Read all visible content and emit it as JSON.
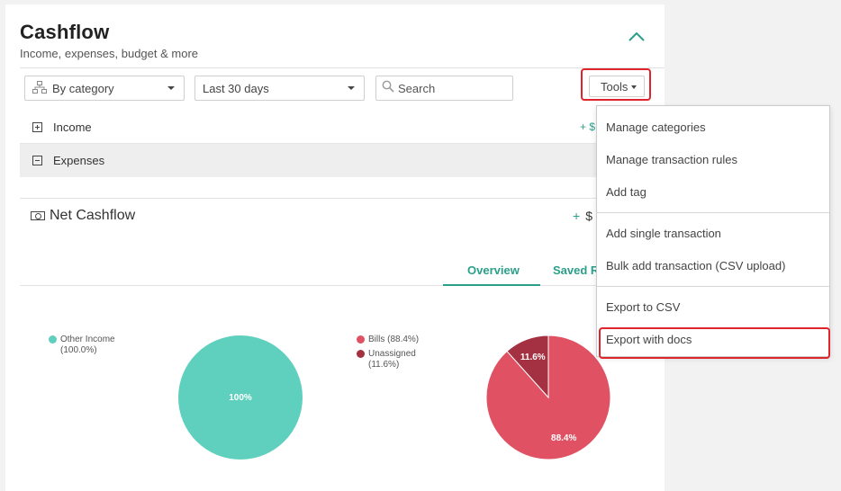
{
  "header": {
    "title": "Cashflow",
    "subtitle": "Income, expenses, budget & more"
  },
  "filters": {
    "group_by": "By category",
    "date_range": "Last 30 days",
    "search_placeholder": "Search",
    "tools_label": "Tools"
  },
  "rows": {
    "income_label": "Income",
    "income_amount": "+ $",
    "expenses_label": "Expenses"
  },
  "net": {
    "label": "Net Cashflow",
    "sign": "+",
    "amount": "$"
  },
  "tabs": {
    "overview": "Overview",
    "saved": "Saved R"
  },
  "income_chart": {
    "legend": [
      {
        "label": "Other Income",
        "pct": "(100.0%)",
        "color": "#5fd0bd"
      }
    ],
    "slice_labels": [
      "100%"
    ]
  },
  "expense_chart": {
    "legend": [
      {
        "label": "Bills (88.4%)",
        "color": "#e05263"
      },
      {
        "label": "Unassigned",
        "pct": "(11.6%)",
        "color": "#a33141"
      }
    ],
    "slice_labels": [
      "11.6%",
      "88.4%"
    ]
  },
  "chart_data": [
    {
      "type": "pie",
      "categories": [
        "Other Income"
      ],
      "values": [
        100.0
      ],
      "colors": [
        "#5fd0bd"
      ]
    },
    {
      "type": "pie",
      "categories": [
        "Bills",
        "Unassigned"
      ],
      "values": [
        88.4,
        11.6
      ],
      "colors": [
        "#e05263",
        "#a33141"
      ]
    }
  ],
  "tools_menu": {
    "items": [
      "Manage categories",
      "Manage transaction rules",
      "Add tag",
      "Add single transaction",
      "Bulk add transaction (CSV upload)",
      "Export to CSV",
      "Export with docs"
    ]
  },
  "colors": {
    "accent": "#2b9f8a",
    "highlight": "#e0242b"
  }
}
